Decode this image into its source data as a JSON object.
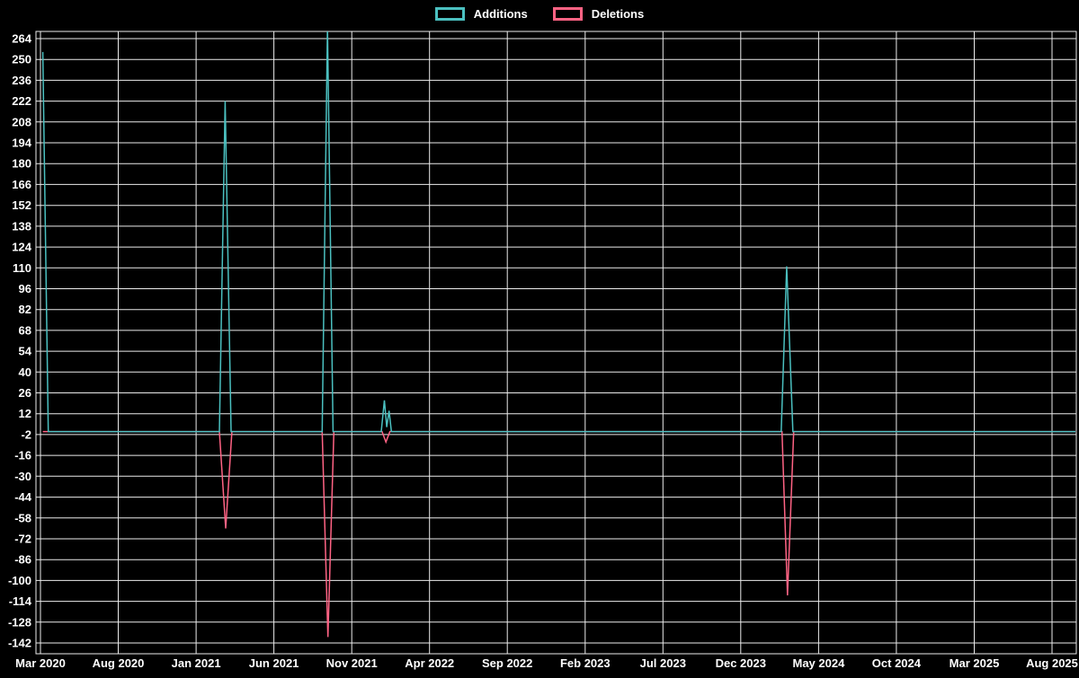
{
  "chart_data": {
    "type": "line",
    "title": "",
    "background_color": "#000000",
    "text_color": "#ffffff",
    "grid": {
      "visible": true,
      "color": "#ebebeb"
    },
    "legend": {
      "position": "top",
      "items": [
        {
          "label": "Additions",
          "color": "#4bc0c0"
        },
        {
          "label": "Deletions",
          "color": "#ff6384"
        }
      ]
    },
    "x_axis": {
      "unit": "months since Mar 2020",
      "tick_labels": [
        "Mar 2020",
        "Aug 2020",
        "Jan 2021",
        "Jun 2021",
        "Nov 2021",
        "Apr 2022",
        "Sep 2022",
        "Feb 2023",
        "Jul 2023",
        "Dec 2023",
        "May 2024",
        "Oct 2024",
        "Mar 2025",
        "Aug 2025"
      ],
      "tick_positions_months": [
        0,
        5,
        10,
        15,
        20,
        25,
        30,
        35,
        40,
        45,
        50,
        55,
        60,
        65
      ],
      "range_months": [
        0,
        66.5
      ]
    },
    "y_axis": {
      "ticks": [
        264,
        250,
        236,
        222,
        208,
        194,
        180,
        166,
        152,
        138,
        124,
        110,
        96,
        82,
        68,
        54,
        40,
        26,
        12,
        -2,
        -16,
        -30,
        -44,
        -58,
        -72,
        -86,
        -100,
        -114,
        -128,
        -142
      ],
      "range": [
        -149,
        269
      ],
      "baseline": 0
    },
    "series": [
      {
        "name": "Additions",
        "color": "#4bc0c0",
        "points": [
          [
            0.15,
            255
          ],
          [
            0.5,
            0
          ],
          [
            11.5,
            0
          ],
          [
            11.87,
            222
          ],
          [
            12.25,
            0
          ],
          [
            18.1,
            0
          ],
          [
            18.44,
            272
          ],
          [
            18.8,
            0
          ],
          [
            21.9,
            0
          ],
          [
            22.1,
            21
          ],
          [
            22.25,
            3
          ],
          [
            22.4,
            14
          ],
          [
            22.55,
            0
          ],
          [
            47.6,
            0
          ],
          [
            47.95,
            111
          ],
          [
            48.35,
            0
          ],
          [
            66.5,
            0
          ]
        ]
      },
      {
        "name": "Deletions",
        "color": "#ff6384",
        "points": [
          [
            0.15,
            0
          ],
          [
            11.5,
            0
          ],
          [
            11.9,
            -65
          ],
          [
            12.3,
            0
          ],
          [
            18.1,
            0
          ],
          [
            18.47,
            -138
          ],
          [
            18.85,
            0
          ],
          [
            21.95,
            0
          ],
          [
            22.2,
            -7
          ],
          [
            22.45,
            0
          ],
          [
            47.65,
            0
          ],
          [
            48.0,
            -110
          ],
          [
            48.4,
            0
          ],
          [
            66.5,
            0
          ]
        ]
      }
    ]
  }
}
